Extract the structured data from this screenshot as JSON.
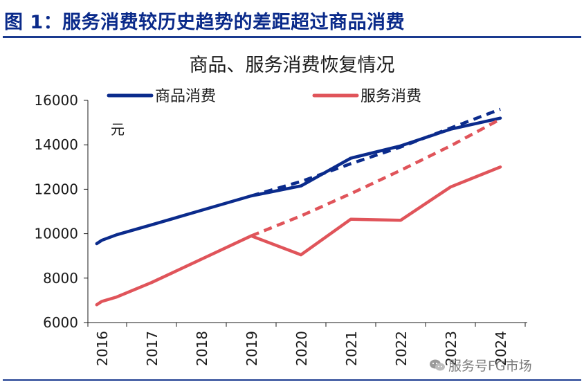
{
  "figure_title": "图 1：服务消费较历史趋势的差距超过商品消费",
  "watermark": "服务号FG市场",
  "colors": {
    "goods": "#0b2b8c",
    "services": "#e0545a",
    "rule": "#1a3a8f",
    "axis": "#1a1a1a"
  },
  "chart_data": {
    "type": "line",
    "title": "商品、服务消费恢复情况",
    "unit_label": "元",
    "xlabel": "",
    "ylabel": "",
    "x": [
      "2016",
      "2017",
      "2018",
      "2019",
      "2020",
      "2021",
      "2022",
      "2023",
      "2024"
    ],
    "ylim": [
      6000,
      16000
    ],
    "yticks": [
      "6000",
      "8000",
      "10000",
      "12000",
      "14000",
      "16000"
    ],
    "legend": "top",
    "series": [
      {
        "name": "商品消费",
        "style": "solid",
        "color": "#0b2b8c",
        "points": [
          [
            2015.9,
            9550
          ],
          [
            2016,
            9700
          ],
          [
            2016.3,
            9950
          ],
          [
            2017,
            10400
          ],
          [
            2018,
            11050
          ],
          [
            2019,
            11700
          ],
          [
            2020,
            12150
          ],
          [
            2021,
            13400
          ],
          [
            2022,
            13950
          ],
          [
            2023,
            14700
          ],
          [
            2024,
            15200
          ]
        ]
      },
      {
        "name": "",
        "style": "dashed",
        "color": "#0b2b8c",
        "points": [
          [
            2019,
            11700
          ],
          [
            2020,
            12350
          ],
          [
            2021,
            13150
          ],
          [
            2022,
            13900
          ],
          [
            2023,
            14750
          ],
          [
            2024,
            15600
          ]
        ]
      },
      {
        "name": "服务消费",
        "style": "solid",
        "color": "#e0545a",
        "points": [
          [
            2015.9,
            6800
          ],
          [
            2016,
            6950
          ],
          [
            2016.3,
            7150
          ],
          [
            2017,
            7800
          ],
          [
            2018,
            8850
          ],
          [
            2019,
            9900
          ],
          [
            2020,
            9050
          ],
          [
            2021,
            10650
          ],
          [
            2022,
            10600
          ],
          [
            2023,
            12100
          ],
          [
            2024,
            13000
          ]
        ]
      },
      {
        "name": "",
        "style": "dashed",
        "color": "#e0545a",
        "points": [
          [
            2019,
            9900
          ],
          [
            2020,
            10800
          ],
          [
            2021,
            11800
          ],
          [
            2022,
            12850
          ],
          [
            2023,
            13950
          ],
          [
            2024,
            15150
          ]
        ]
      }
    ]
  }
}
